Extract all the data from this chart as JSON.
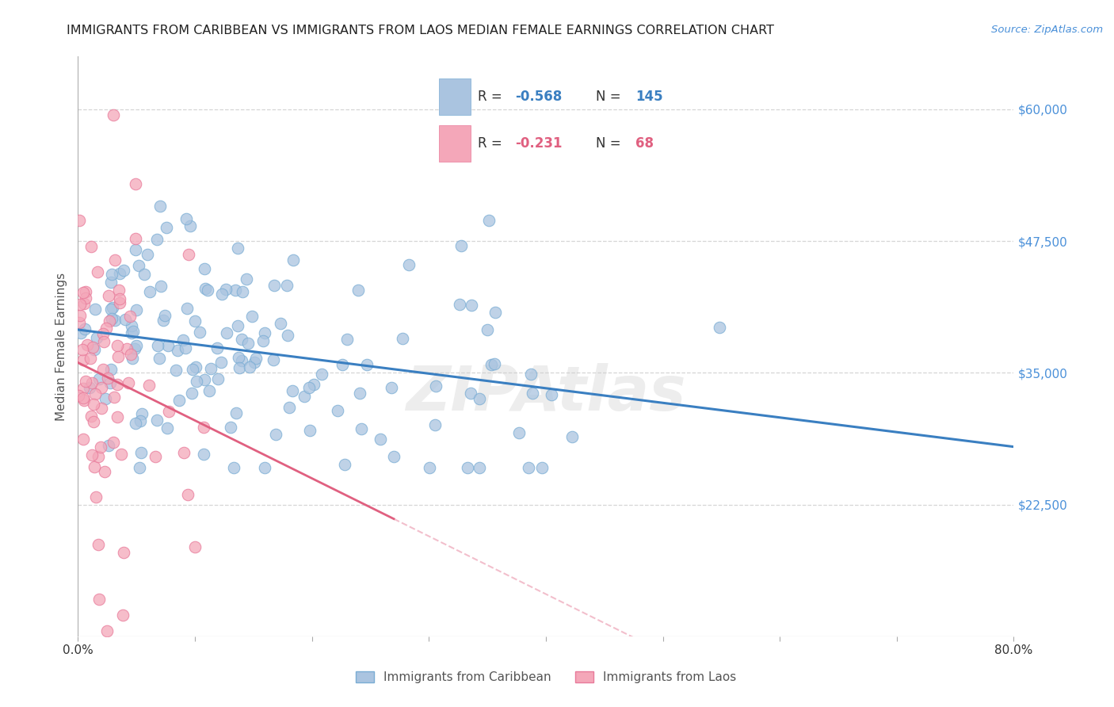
{
  "title": "IMMIGRANTS FROM CARIBBEAN VS IMMIGRANTS FROM LAOS MEDIAN FEMALE EARNINGS CORRELATION CHART",
  "source": "Source: ZipAtlas.com",
  "ylabel": "Median Female Earnings",
  "x_min": 0.0,
  "x_max": 0.8,
  "y_min": 10000,
  "y_max": 65000,
  "yticks": [
    22500,
    35000,
    47500,
    60000
  ],
  "ytick_labels": [
    "$22,500",
    "$35,000",
    "$47,500",
    "$60,000"
  ],
  "xticks": [
    0.0,
    0.1,
    0.2,
    0.3,
    0.4,
    0.5,
    0.6,
    0.7,
    0.8
  ],
  "xtick_labels": [
    "0.0%",
    "",
    "",
    "",
    "",
    "",
    "",
    "",
    "80.0%"
  ],
  "series1_color": "#aac4e0",
  "series1_edge": "#7aadd4",
  "series2_color": "#f4a7b9",
  "series2_edge": "#e87a9a",
  "line1_color": "#3a7fc1",
  "line2_color": "#e06080",
  "legend1_label": "Immigrants from Caribbean",
  "legend2_label": "Immigrants from Laos",
  "R1": -0.568,
  "N1": 145,
  "R2": -0.231,
  "N2": 68,
  "watermark": "ZIPAtlas",
  "background_color": "#ffffff",
  "grid_color": "#cccccc",
  "title_color": "#222222",
  "axis_label_color": "#555555",
  "ytick_color": "#4a90d9",
  "source_color": "#4a90d9",
  "legend_box_color": "#e8e8e8",
  "seed": 17
}
